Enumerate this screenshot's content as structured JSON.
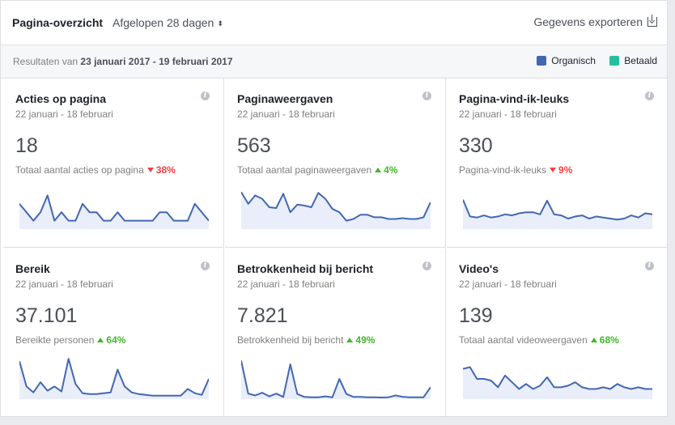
{
  "header": {
    "title": "Pagina-overzicht",
    "period": "Afgelopen 28 dagen",
    "period_arrow": "⬍",
    "export_label": "Gegevens exporteren"
  },
  "subheader": {
    "results_prefix": "Resultaten van",
    "results_range": "23 januari 2017 - 19 februari 2017",
    "legend": [
      {
        "label": "Organisch",
        "color": "#4267b2"
      },
      {
        "label": "Betaald",
        "color": "#23c0a0"
      }
    ]
  },
  "colors": {
    "line": "#4267b2",
    "fill": "#e9eefa",
    "up": "#42b72a",
    "down": "#fa3e3e"
  },
  "cards": [
    {
      "title": "Acties op pagina",
      "date": "22 januari - 18 februari",
      "value": "18",
      "description": "Totaal aantal acties op pagina",
      "delta": "38%",
      "direction": "down",
      "info_icon": "i",
      "series": [
        3,
        2,
        1,
        2,
        4,
        1,
        2,
        1,
        1,
        3,
        2,
        2,
        1,
        1,
        2,
        1,
        1,
        1,
        1,
        1,
        2,
        2,
        1,
        1,
        1,
        3,
        2,
        1
      ],
      "ymax": 5
    },
    {
      "title": "Paginaweergaven",
      "date": "22 januari - 18 februari",
      "value": "563",
      "description": "Totaal aantal paginaweergaven",
      "delta": "4%",
      "direction": "up",
      "info_icon": "i",
      "series": [
        44,
        30,
        40,
        36,
        26,
        25,
        42,
        20,
        29,
        28,
        26,
        43,
        36,
        24,
        20,
        10,
        12,
        17,
        17,
        14,
        14,
        12,
        12,
        13,
        12,
        12,
        14,
        32
      ],
      "ymax": 50
    },
    {
      "title": "Pagina-vind-ik-leuks",
      "date": "22 januari - 18 februari",
      "value": "330",
      "description": "Pagina-vind-ik-leuks",
      "delta": "9%",
      "direction": "down",
      "info_icon": "i",
      "series": [
        28,
        12,
        11,
        13,
        11,
        12,
        14,
        13,
        15,
        16,
        16,
        14,
        27,
        14,
        13,
        10,
        12,
        13,
        10,
        12,
        11,
        10,
        9,
        10,
        13,
        11,
        15,
        14
      ],
      "ymax": 40
    },
    {
      "title": "Bereik",
      "date": "22 januari - 18 februari",
      "value": "37.101",
      "description": "Bereikte personen",
      "delta": "64%",
      "direction": "up",
      "info_icon": "i",
      "series": [
        4500,
        1500,
        800,
        2000,
        1000,
        1500,
        900,
        4800,
        1800,
        700,
        600,
        600,
        700,
        800,
        3500,
        1500,
        800,
        600,
        500,
        400,
        400,
        400,
        400,
        400,
        1200,
        700,
        500,
        2400
      ],
      "ymax": 5000
    },
    {
      "title": "Betrokkenheid bij bericht",
      "date": "22 januari - 18 februari",
      "value": "7.821",
      "description": "Betrokkenheid bij bericht",
      "delta": "49%",
      "direction": "up",
      "info_icon": "i",
      "series": [
        2100,
        300,
        200,
        350,
        150,
        300,
        120,
        1900,
        280,
        120,
        100,
        100,
        150,
        100,
        1100,
        280,
        120,
        120,
        100,
        100,
        90,
        100,
        200,
        130,
        100,
        100,
        100,
        650
      ],
      "ymax": 2300
    },
    {
      "title": "Video's",
      "date": "22 januari - 18 februari",
      "value": "139",
      "description": "Totaal aantal videoweergaven",
      "delta": "68%",
      "direction": "up",
      "info_icon": "i",
      "series": [
        18,
        19,
        12,
        12,
        11,
        7,
        14,
        10,
        6,
        9,
        6,
        8,
        13,
        7,
        7,
        8,
        10,
        7,
        6,
        6,
        7,
        6,
        9,
        7,
        6,
        7,
        6,
        6
      ],
      "ymax": 25
    }
  ]
}
